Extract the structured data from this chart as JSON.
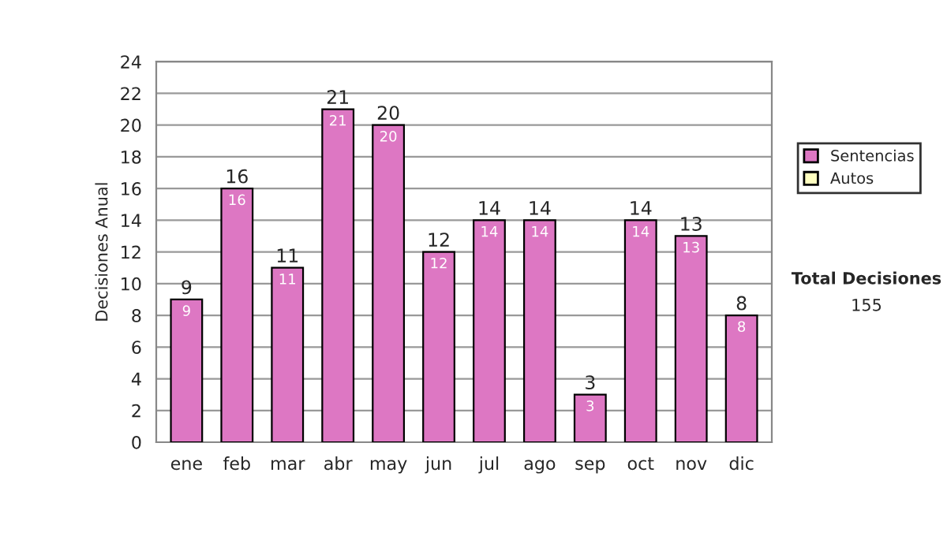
{
  "chart_data": {
    "type": "bar",
    "ylabel": "Decisiones Anual",
    "categories": [
      "ene",
      "feb",
      "mar",
      "abr",
      "may",
      "jun",
      "jul",
      "ago",
      "sep",
      "oct",
      "nov",
      "dic"
    ],
    "series": [
      {
        "name": "Sentencias",
        "color": "#dd77c3",
        "values": [
          9,
          16,
          11,
          21,
          20,
          12,
          14,
          14,
          3,
          14,
          13,
          8
        ],
        "value_labels": [
          "9",
          "16",
          "11",
          "21",
          "20",
          "12",
          "14",
          "14",
          "3",
          "14",
          "13",
          "8"
        ]
      },
      {
        "name": "Autos",
        "color": "#ffffc0",
        "values": [
          null,
          null,
          null,
          null,
          null,
          null,
          null,
          null,
          null,
          null,
          null,
          null
        ]
      }
    ],
    "totals": [
      "9",
      "16",
      "11",
      "21",
      "20",
      "12",
      "14",
      "14",
      "3",
      "14",
      "13",
      "8"
    ],
    "ylim": [
      0,
      24
    ],
    "yticks": [
      0,
      2,
      4,
      6,
      8,
      10,
      12,
      14,
      16,
      18,
      20,
      22,
      24
    ],
    "grid": "y",
    "legend": "right",
    "annotations": [
      "Total Decisiones",
      "155"
    ]
  }
}
